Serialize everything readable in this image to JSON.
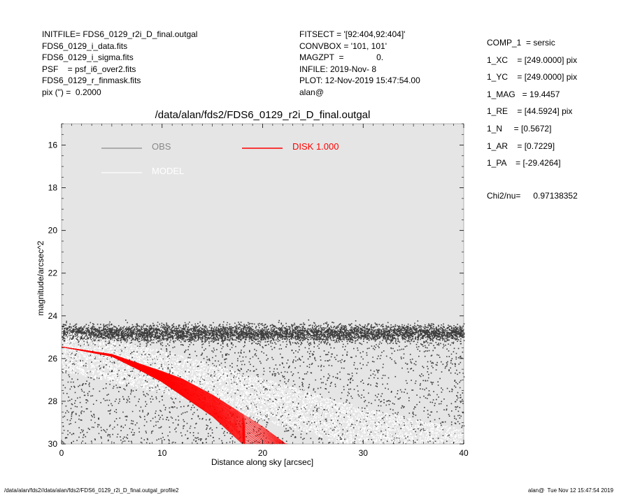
{
  "header_left": [
    "INITFILE= FDS6_0129_r2i_D_final.outgal",
    "FDS6_0129_i_data.fits",
    "FDS6_0129_i_sigma.fits",
    "PSF    = psf_i6_over2.fits",
    "FDS6_0129_r_finmask.fits",
    "pix (\") =  0.2000"
  ],
  "header_mid": [
    "FITSECT = '[92:404,92:404]'",
    "CONVBOX = '101, 101'",
    "MAGZPT  =              0.",
    "INFILE: 2019-Nov- 8",
    "PLOT: 12-Nov-2019 15:47:54.00",
    "alan@"
  ],
  "header_right": [
    "COMP_1  = sersic",
    "1_XC    = [249.0000] pix",
    "1_YC    = [249.0000] pix",
    "1_MAG   = 19.4457",
    "1_RE    = [44.5924] pix",
    "1_N     = [0.5672]",
    "1_AR    = [0.7229]",
    "1_PA    = [-29.4264]"
  ],
  "chi2": {
    "label": "Chi2/nu=",
    "value": "0.97138352"
  },
  "footer": {
    "left": "/data/alan/fds2//data/alan/fds2/FDS6_0129_r2i_D_final.outgal_profile2",
    "right": "alan@  Tue Nov 12 15:47:54 2019"
  },
  "chart_data": {
    "type": "scatter",
    "title": "/data/alan/fds2/FDS6_0129_r2i_D_final.outgal",
    "xlabel": "Distance along sky [arcsec]",
    "ylabel": "magnitude/arcsec^2",
    "xlim": [
      0,
      40
    ],
    "ylim": [
      30,
      15
    ],
    "y_inverted": true,
    "xticks": [
      0,
      10,
      20,
      30,
      40
    ],
    "yticks": [
      16,
      18,
      20,
      22,
      24,
      26,
      28,
      30
    ],
    "grid": false,
    "legend": [
      {
        "name": "OBS",
        "color": "#888888",
        "line_color": "#8c8c8c"
      },
      {
        "name": "MODEL",
        "color": "#ffffff",
        "line_color": "#ffffff"
      },
      {
        "name": "DISK  1.000",
        "color": "#ff0000",
        "line_color": "#ff0000"
      }
    ],
    "legend_position": "top",
    "colors": {
      "plot_bg": "#e5e5e5",
      "obs": "#3c3c3c",
      "model": "#ffffff",
      "disk": "#ff0000"
    },
    "series": [
      {
        "name": "OBS",
        "kind": "scatter",
        "x_range": [
          0,
          40
        ],
        "dense_band": {
          "y_center": 24.8,
          "y_spread": 0.8
        },
        "diffuse_y_range": [
          25.0,
          30.0
        ],
        "approx_points": 9000
      },
      {
        "name": "MODEL",
        "kind": "scatter",
        "x_range": [
          0,
          40
        ],
        "y_at_x": [
          [
            0,
            25.3
          ],
          [
            10,
            26.3
          ],
          [
            20,
            27.6
          ],
          [
            30,
            29.0
          ],
          [
            40,
            30.0
          ]
        ],
        "y_spread": 0.9,
        "approx_points": 7000
      },
      {
        "name": "DISK  1.000",
        "kind": "band",
        "upper_curve": [
          [
            0,
            25.45
          ],
          [
            5,
            25.8
          ],
          [
            10,
            26.6
          ],
          [
            12,
            26.95
          ],
          [
            15,
            27.7
          ],
          [
            20,
            29.2
          ],
          [
            22.3,
            30.0
          ]
        ],
        "lower_curve": [
          [
            0,
            25.45
          ],
          [
            5,
            25.9
          ],
          [
            8,
            26.6
          ],
          [
            10,
            27.1
          ],
          [
            15,
            28.7
          ],
          [
            18,
            30.0
          ]
        ]
      }
    ]
  }
}
